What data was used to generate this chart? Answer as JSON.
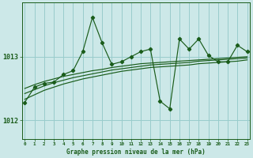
{
  "title": "Graphe pression niveau de la mer (hPa)",
  "background_color": "#cce8e8",
  "grid_color": "#99cccc",
  "line_color": "#1a5c1a",
  "x_ticks": [
    0,
    1,
    2,
    3,
    4,
    5,
    6,
    7,
    8,
    9,
    10,
    11,
    12,
    13,
    14,
    15,
    16,
    17,
    18,
    19,
    20,
    21,
    22,
    23
  ],
  "ylim": [
    1011.7,
    1013.85
  ],
  "yticks": [
    1012,
    1013
  ],
  "main_series": [
    1012.28,
    1012.52,
    1012.58,
    1012.6,
    1012.72,
    1012.78,
    1013.08,
    1013.62,
    1013.22,
    1012.88,
    1012.92,
    1013.0,
    1013.08,
    1013.12,
    1012.3,
    1012.18,
    1013.28,
    1013.12,
    1013.28,
    1013.02,
    1012.92,
    1012.92,
    1013.18,
    1013.08
  ],
  "smooth1": [
    1012.5,
    1012.56,
    1012.61,
    1012.65,
    1012.69,
    1012.72,
    1012.75,
    1012.78,
    1012.8,
    1012.83,
    1012.85,
    1012.87,
    1012.89,
    1012.9,
    1012.91,
    1012.92,
    1012.93,
    1012.94,
    1012.95,
    1012.96,
    1012.97,
    1012.98,
    1012.99,
    1013.0
  ],
  "smooth2": [
    1012.42,
    1012.48,
    1012.54,
    1012.59,
    1012.63,
    1012.67,
    1012.7,
    1012.73,
    1012.76,
    1012.79,
    1012.81,
    1012.83,
    1012.85,
    1012.87,
    1012.88,
    1012.89,
    1012.9,
    1012.91,
    1012.93,
    1012.94,
    1012.95,
    1012.96,
    1012.97,
    1012.98
  ],
  "smooth3": [
    1012.33,
    1012.4,
    1012.47,
    1012.52,
    1012.57,
    1012.61,
    1012.65,
    1012.68,
    1012.71,
    1012.74,
    1012.77,
    1012.79,
    1012.81,
    1012.83,
    1012.84,
    1012.85,
    1012.86,
    1012.87,
    1012.89,
    1012.9,
    1012.91,
    1012.92,
    1012.93,
    1012.95
  ]
}
